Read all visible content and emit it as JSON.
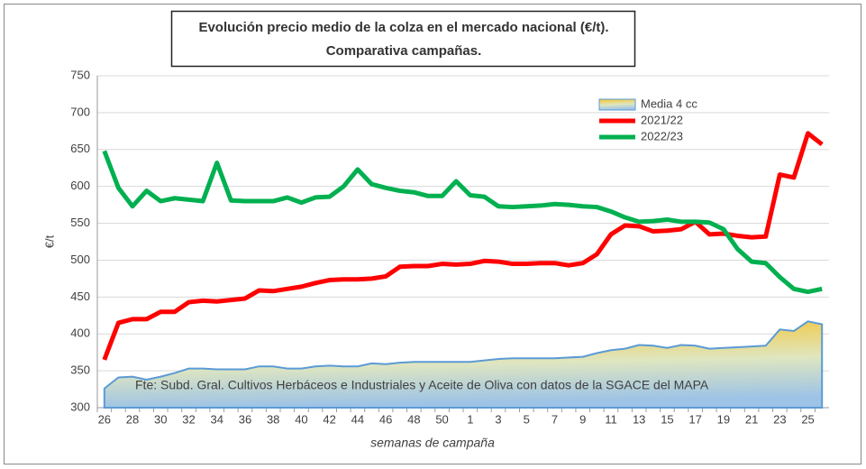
{
  "chart_data": {
    "type": "line",
    "title": "Evolución precio medio de la colza en el mercado nacional (€/t).",
    "subtitle": "Comparativa  campañas.",
    "y_label": "€/t",
    "x_label": "semanas de campaña",
    "annotation": "Fte: Subd. Gral. Cultivos Herbáceos e Industriales y Aceite de Oliva con datos de la SGACE del MAPA",
    "categories": [
      "26",
      null,
      "28",
      null,
      "30",
      null,
      "32",
      null,
      "34",
      null,
      "36",
      null,
      "38",
      null,
      "40",
      null,
      "42",
      null,
      "44",
      null,
      "46",
      null,
      "48",
      null,
      "50",
      null,
      "1",
      null,
      "3",
      null,
      "5",
      null,
      "7",
      null,
      "9",
      null,
      "11",
      null,
      "13",
      null,
      "15",
      null,
      "17",
      null,
      "19",
      null,
      "21",
      null,
      "23",
      null,
      "25",
      null
    ],
    "ylim": [
      300,
      750
    ],
    "yticks": [
      300,
      350,
      400,
      450,
      500,
      550,
      600,
      650,
      700,
      750
    ],
    "grid": true,
    "legend": "upper right",
    "series": [
      {
        "name": "Media 4 cc",
        "type": "area",
        "color": "#5b9bd5",
        "values": [
          326,
          341,
          342,
          338,
          342,
          347,
          353,
          353,
          352,
          352,
          352,
          356,
          356,
          353,
          353,
          356,
          357,
          356,
          356,
          360,
          359,
          361,
          362,
          362,
          362,
          362,
          362,
          364,
          366,
          367,
          367,
          367,
          367,
          368,
          369,
          374,
          378,
          380,
          385,
          384,
          381,
          385,
          384,
          380,
          381,
          382,
          383,
          384,
          406,
          404,
          417,
          413
        ]
      },
      {
        "name": "2021/22",
        "type": "line",
        "color": "#ff0000",
        "values": [
          365,
          415,
          420,
          420,
          430,
          430,
          443,
          445,
          444,
          446,
          448,
          459,
          458,
          461,
          464,
          469,
          473,
          474,
          474,
          475,
          478,
          491,
          492,
          492,
          495,
          494,
          495,
          499,
          498,
          495,
          495,
          496,
          496,
          493,
          496,
          508,
          535,
          547,
          546,
          539,
          540,
          542,
          552,
          535,
          536,
          533,
          531,
          532,
          616,
          612,
          672,
          657
        ]
      },
      {
        "name": "2022/23",
        "type": "line",
        "color": "#00b050",
        "values": [
          648,
          598,
          573,
          594,
          580,
          584,
          582,
          580,
          632,
          581,
          580,
          580,
          580,
          585,
          578,
          585,
          586,
          600,
          623,
          603,
          598,
          594,
          592,
          587,
          587,
          607,
          588,
          586,
          573,
          572,
          573,
          574,
          576,
          575,
          573,
          572,
          566,
          558,
          552,
          553,
          555,
          552,
          552,
          551,
          542,
          515,
          498,
          496,
          477,
          461,
          457,
          461
        ]
      }
    ]
  }
}
